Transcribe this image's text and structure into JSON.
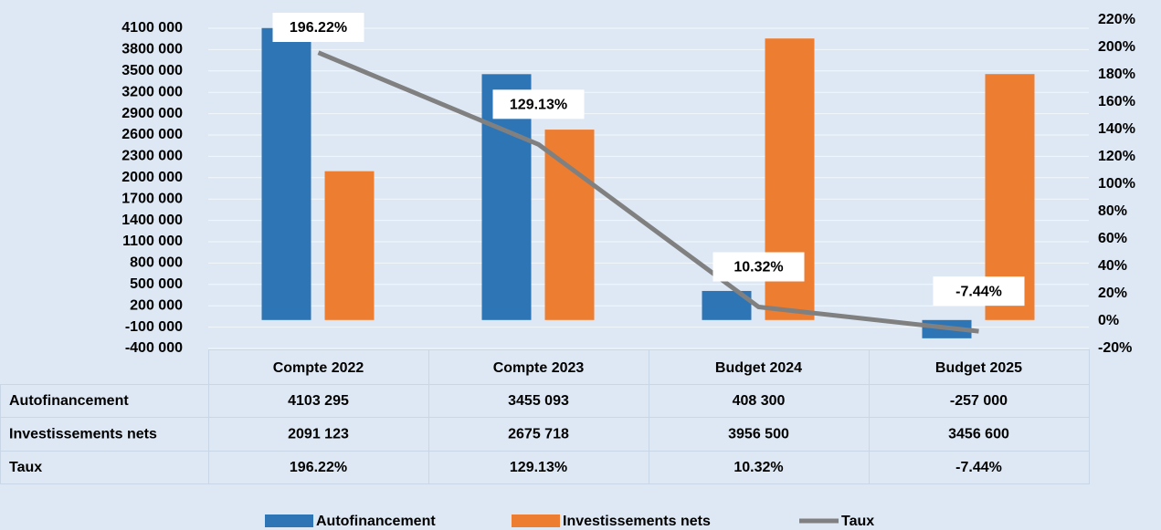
{
  "chart_data": {
    "type": "bar_line_table",
    "categories": [
      "Compte 2022",
      "Compte 2023",
      "Budget 2024",
      "Budget 2025"
    ],
    "series": [
      {
        "name": "Autofinancement",
        "color": "#2e75b6",
        "values": [
          4103295,
          3455093,
          408300,
          -257000
        ],
        "value_labels": [
          "4103 295",
          "3455 093",
          "408 300",
          "-257 000"
        ]
      },
      {
        "name": "Investissements nets",
        "color": "#ed7d31",
        "values": [
          2091123,
          2675718,
          3956500,
          3456600
        ],
        "value_labels": [
          "2091 123",
          "2675 718",
          "3956 500",
          "3456 600"
        ]
      },
      {
        "name": "Taux",
        "color": "#808080",
        "axis": "y2",
        "type": "line",
        "values": [
          196.22,
          129.13,
          10.32,
          -7.44
        ],
        "value_labels": [
          "196.22%",
          "129.13%",
          "10.32%",
          "-7.44%"
        ]
      }
    ],
    "ylim": [
      -400000,
      4100000
    ],
    "yticks": [
      {
        "value": -400000,
        "label": "-400 000"
      },
      {
        "value": -100000,
        "label": "-100 000"
      },
      {
        "value": 200000,
        "label": "200 000"
      },
      {
        "value": 500000,
        "label": "500 000"
      },
      {
        "value": 800000,
        "label": "800 000"
      },
      {
        "value": 1100000,
        "label": "1100 000"
      },
      {
        "value": 1400000,
        "label": "1400 000"
      },
      {
        "value": 1700000,
        "label": "1700 000"
      },
      {
        "value": 2000000,
        "label": "2000 000"
      },
      {
        "value": 2300000,
        "label": "2300 000"
      },
      {
        "value": 2600000,
        "label": "2600 000"
      },
      {
        "value": 2900000,
        "label": "2900 000"
      },
      {
        "value": 3200000,
        "label": "3200 000"
      },
      {
        "value": 3500000,
        "label": "3500 000"
      },
      {
        "value": 3800000,
        "label": "3800 000"
      },
      {
        "value": 4100000,
        "label": "4100 000"
      }
    ],
    "y2lim": [
      -20,
      220
    ],
    "y2ticks": [
      {
        "value": -20,
        "label": "-20%"
      },
      {
        "value": 0,
        "label": "0%"
      },
      {
        "value": 20,
        "label": "20%"
      },
      {
        "value": 40,
        "label": "40%"
      },
      {
        "value": 60,
        "label": "60%"
      },
      {
        "value": 80,
        "label": "80%"
      },
      {
        "value": 100,
        "label": "100%"
      },
      {
        "value": 120,
        "label": "120%"
      },
      {
        "value": 140,
        "label": "140%"
      },
      {
        "value": 160,
        "label": "160%"
      },
      {
        "value": 180,
        "label": "180%"
      },
      {
        "value": 200,
        "label": "200%"
      },
      {
        "value": 220,
        "label": "220%"
      }
    ],
    "grid": true,
    "legend": "bottom"
  }
}
